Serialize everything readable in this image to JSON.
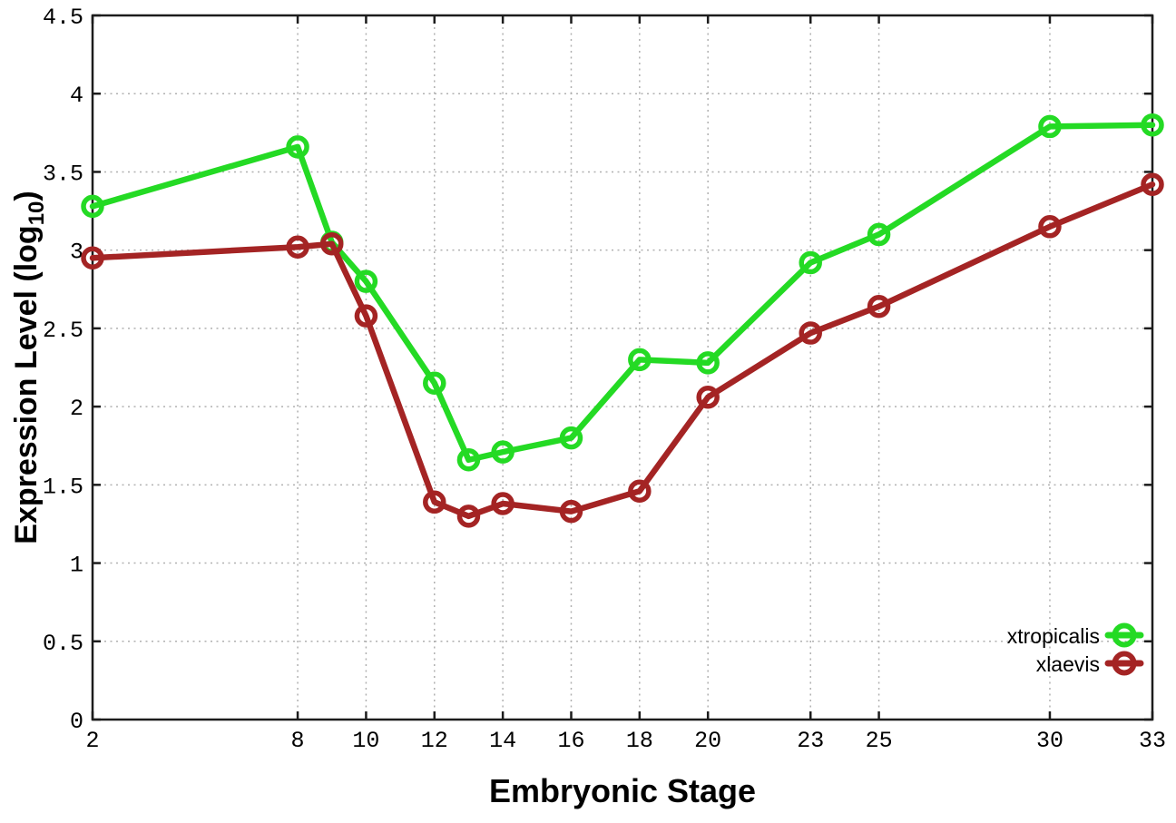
{
  "chart_data": {
    "type": "line",
    "title": "",
    "xlabel": "Embryonic Stage",
    "ylabel_parts": {
      "main": "Expression Level (log",
      "sub": "10",
      "close": ")"
    },
    "xlim": [
      2,
      33
    ],
    "ylim": [
      0,
      4.5
    ],
    "x_ticks": [
      2,
      8,
      10,
      12,
      14,
      16,
      18,
      20,
      23,
      25,
      30,
      33
    ],
    "y_ticks": [
      0,
      0.5,
      1,
      1.5,
      2,
      2.5,
      3,
      3.5,
      4,
      4.5
    ],
    "grid": true,
    "legend_position": "inside-bottom-right",
    "x": [
      2,
      8,
      9,
      10,
      12,
      13,
      14,
      16,
      18,
      20,
      23,
      25,
      30,
      33
    ],
    "series": [
      {
        "name": "xtropicalis",
        "color": "#24da24",
        "marker": "open-circle",
        "values": [
          3.28,
          3.66,
          3.05,
          2.8,
          2.15,
          1.66,
          1.71,
          1.8,
          2.3,
          2.28,
          2.92,
          3.1,
          3.79,
          3.8
        ]
      },
      {
        "name": "xlaevis",
        "color": "#a42424",
        "marker": "open-circle",
        "values": [
          2.95,
          3.02,
          3.04,
          2.58,
          1.39,
          1.3,
          1.38,
          1.33,
          1.46,
          2.06,
          2.47,
          2.64,
          3.15,
          3.42
        ]
      }
    ],
    "style": {
      "background": "#ffffff",
      "grid_color": "#b0b0b0",
      "axis_color": "#1c1c1c",
      "text_color": "#000000"
    }
  }
}
